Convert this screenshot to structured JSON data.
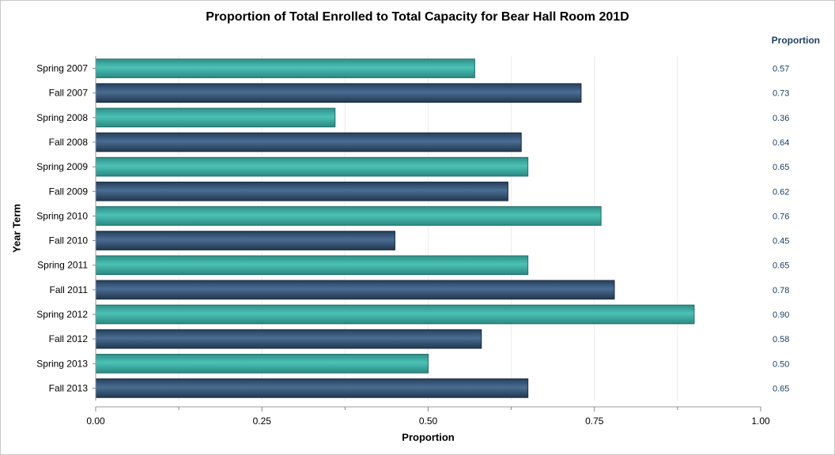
{
  "chart_data": {
    "type": "bar",
    "orientation": "horizontal",
    "title": "Proportion of Total Enrolled to Total Capacity for Bear Hall Room 201D",
    "xlabel": "Proportion",
    "ylabel": "Year Term",
    "value_column_header": "Proportion",
    "categories": [
      "Spring 2007",
      "Fall 2007",
      "Spring 2008",
      "Fall 2008",
      "Spring 2009",
      "Fall 2009",
      "Spring 2010",
      "Fall 2010",
      "Spring 2011",
      "Fall 2011",
      "Spring 2012",
      "Fall 2012",
      "Spring 2013",
      "Fall 2013"
    ],
    "values": [
      0.57,
      0.73,
      0.36,
      0.64,
      0.65,
      0.62,
      0.76,
      0.45,
      0.65,
      0.78,
      0.9,
      0.58,
      0.5,
      0.65
    ],
    "value_labels": [
      "0.57",
      "0.73",
      "0.36",
      "0.64",
      "0.65",
      "0.62",
      "0.76",
      "0.45",
      "0.65",
      "0.78",
      "0.90",
      "0.58",
      "0.50",
      "0.65"
    ],
    "xlim": [
      0,
      1
    ],
    "xticks": [
      0,
      0.25,
      0.5,
      0.75,
      1.0
    ],
    "xtick_labels": [
      "0.00",
      "0.25",
      "0.50",
      "0.75",
      "1.00"
    ],
    "grid": "vertical",
    "colors": {
      "spring": "#3aaea4",
      "fall": "#32506f",
      "value_text": "#1f3f66"
    }
  }
}
